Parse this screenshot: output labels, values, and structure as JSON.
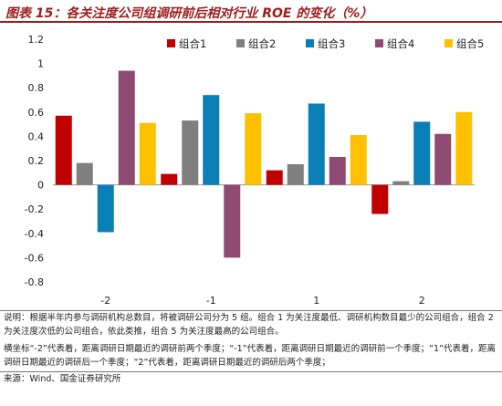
{
  "header": {
    "title": "图表 15：各关注度公司组调研前后相对行业 ROE 的变化（%）"
  },
  "chart_data": {
    "type": "bar",
    "title": "",
    "xlabel": "",
    "ylabel": "",
    "categories": [
      "-2",
      "-1",
      "1",
      "2"
    ],
    "ylim": [
      -0.8,
      1.2
    ],
    "yticks": [
      "1.2",
      "1",
      "0.8",
      "0.6",
      "0.4",
      "0.2",
      "0",
      "-0.2",
      "-0.4",
      "-0.6",
      "-0.8"
    ],
    "legend_position": "top-right",
    "grid": false,
    "series": [
      {
        "name": "组合1",
        "color": "#c00000",
        "values": [
          0.57,
          0.09,
          0.12,
          -0.24
        ]
      },
      {
        "name": "组合2",
        "color": "#7f7f7f",
        "values": [
          0.18,
          0.53,
          0.17,
          0.03
        ]
      },
      {
        "name": "组合3",
        "color": "#0a7fb5",
        "values": [
          -0.39,
          0.74,
          0.67,
          0.52
        ]
      },
      {
        "name": "组合4",
        "color": "#8e4a73",
        "values": [
          0.94,
          -0.6,
          0.23,
          0.42
        ]
      },
      {
        "name": "组合5",
        "color": "#ffc000",
        "values": [
          0.51,
          0.59,
          0.41,
          0.6
        ]
      }
    ]
  },
  "notes": {
    "explanation": "说明：根据半年内参与调研机构总数目，将被调研公司分为 5 组。组合 1 为关注度最低、调研机构数目最少的公司组合，组合 2 为关注度次低的公司组合，依此类推，组合 5 为关注度最高的公司组合。",
    "axis_note": "横坐标“-2”代表着，距离调研日期最近的调研前两个季度；“-1”代表着，距离调研日期最近的调研前一个季度；“1”代表着，距离调研日期最近的调研后一个季度；“2”代表着，距离调研日期最近的调研后两个季度；",
    "source": "来源：Wind、国金证券研究所"
  }
}
